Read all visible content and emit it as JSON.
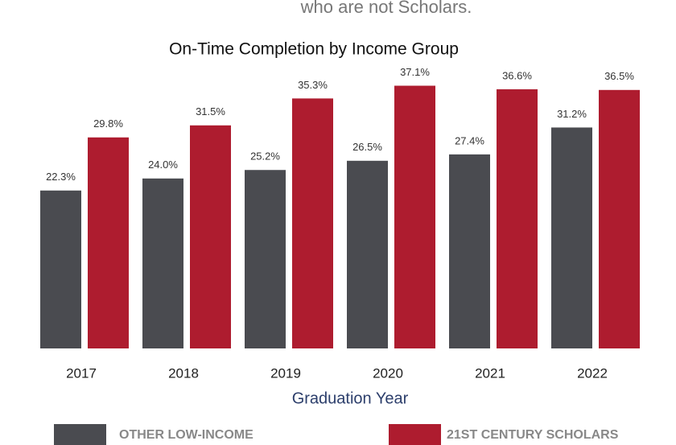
{
  "chart_data": {
    "type": "bar",
    "subtitle": "who are not Scholars.",
    "title": "On-Time Completion by Income Group",
    "x_label": "Graduation Year",
    "categories": [
      "2017",
      "2018",
      "2019",
      "2020",
      "2021",
      "2022"
    ],
    "series": [
      {
        "name": "OTHER LOW-INCOME",
        "color": "#4a4b50",
        "values": [
          22.3,
          24.0,
          25.2,
          26.5,
          27.4,
          31.2
        ],
        "value_labels": [
          "22.3%",
          "24.0%",
          "25.2%",
          "26.5%",
          "27.4%",
          "31.2%"
        ]
      },
      {
        "name": "21ST CENTURY SCHOLARS",
        "color": "#ae1c2f",
        "values": [
          29.8,
          31.5,
          35.3,
          37.1,
          36.6,
          36.5
        ],
        "value_labels": [
          "29.8%",
          "31.5%",
          "35.3%",
          "37.1%",
          "36.6%",
          "36.5%"
        ]
      }
    ],
    "ylim": [
      0,
      40
    ]
  }
}
